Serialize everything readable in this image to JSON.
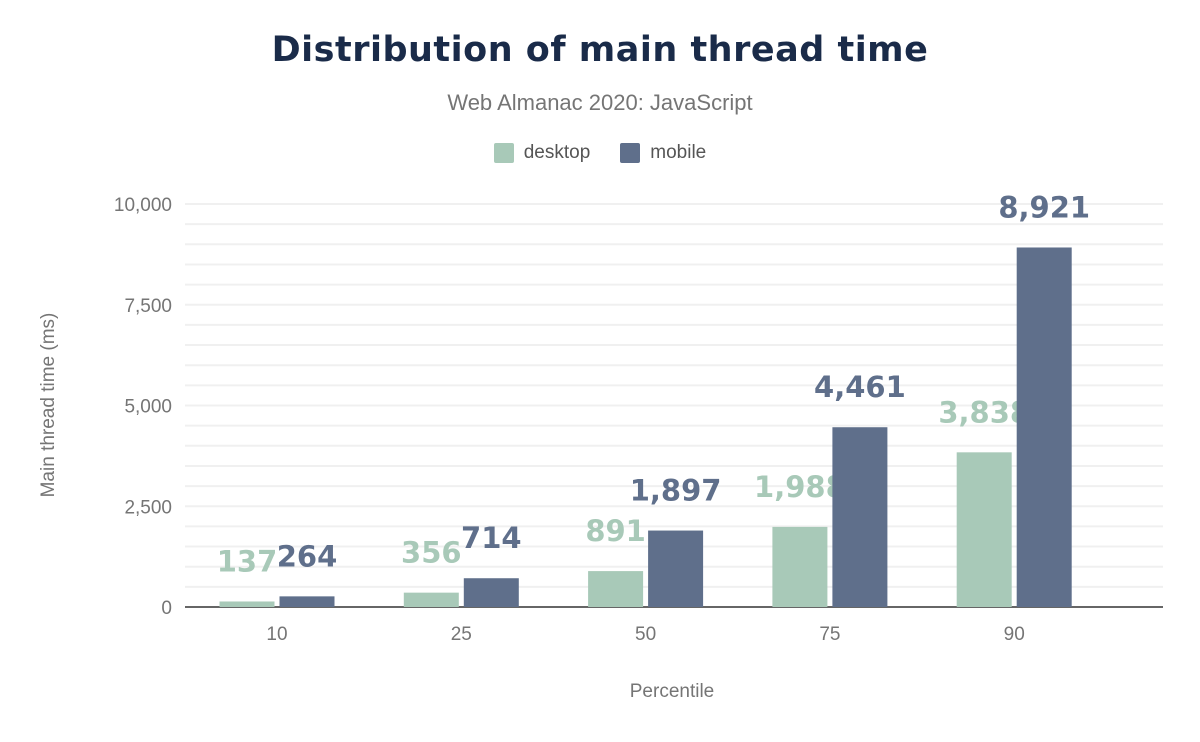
{
  "chart_data": {
    "type": "bar",
    "title": "Distribution of main thread time",
    "subtitle": "Web Almanac 2020: JavaScript",
    "xlabel": "Percentile",
    "ylabel": "Main thread time (ms)",
    "categories": [
      "10",
      "25",
      "50",
      "75",
      "90"
    ],
    "series": [
      {
        "name": "desktop",
        "color": "#a8c9b8",
        "values": [
          137,
          356,
          891,
          1988,
          3838
        ],
        "labels": [
          "137",
          "356",
          "891",
          "1,988",
          "3,838"
        ]
      },
      {
        "name": "mobile",
        "color": "#5f6f8b",
        "values": [
          264,
          714,
          1897,
          4461,
          8921
        ],
        "labels": [
          "264",
          "714",
          "1,897",
          "4,461",
          "8,921"
        ]
      }
    ],
    "ylim": [
      0,
      10000
    ],
    "yticks": [
      0,
      2500,
      5000,
      7500,
      10000
    ],
    "ytick_labels": [
      "0",
      "2,500",
      "5,000",
      "7,500",
      "10,000"
    ],
    "grid": true,
    "legend": "top-center"
  }
}
